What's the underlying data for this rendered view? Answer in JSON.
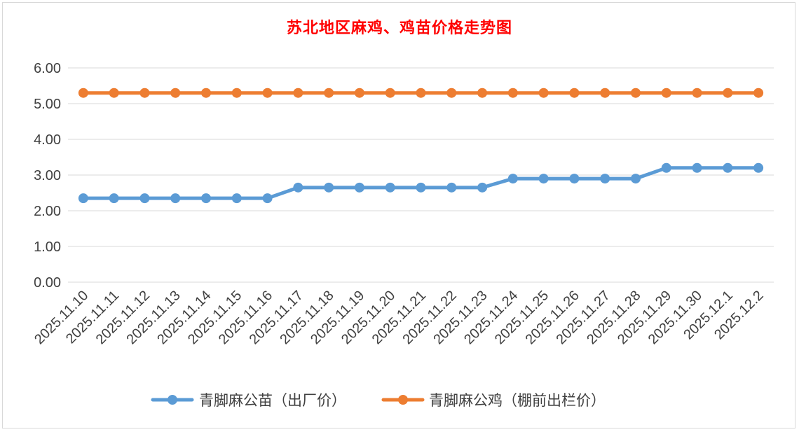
{
  "chart_data": {
    "type": "line",
    "title": "苏北地区麻鸡、鸡苗价格走势图",
    "categories": [
      "2025.11.10",
      "2025.11.11",
      "2025.11.12",
      "2025.11.13",
      "2025.11.14",
      "2025.11.15",
      "2025.11.16",
      "2025.11.17",
      "2025.11.18",
      "2025.11.19",
      "2025.11.20",
      "2025.11.21",
      "2025.11.22",
      "2025.11.23",
      "2025.11.24",
      "2025.11.25",
      "2025.11.26",
      "2025.11.27",
      "2025.11.28",
      "2025.11.29",
      "2025.11.30",
      "2025.12.1",
      "2025.12.2"
    ],
    "series": [
      {
        "name": "青脚麻公苗（出厂价）",
        "color": "#5b9bd5",
        "values": [
          2.35,
          2.35,
          2.35,
          2.35,
          2.35,
          2.35,
          2.35,
          2.65,
          2.65,
          2.65,
          2.65,
          2.65,
          2.65,
          2.65,
          2.9,
          2.9,
          2.9,
          2.9,
          2.9,
          3.2,
          3.2,
          3.2,
          3.2
        ]
      },
      {
        "name": "青脚麻公鸡（棚前出栏价）",
        "color": "#ed7d31",
        "values": [
          5.3,
          5.3,
          5.3,
          5.3,
          5.3,
          5.3,
          5.3,
          5.3,
          5.3,
          5.3,
          5.3,
          5.3,
          5.3,
          5.3,
          5.3,
          5.3,
          5.3,
          5.3,
          5.3,
          5.3,
          5.3,
          5.3,
          5.3
        ]
      }
    ],
    "yticks": [
      "0.00",
      "1.00",
      "2.00",
      "3.00",
      "4.00",
      "5.00",
      "6.00"
    ],
    "ylim": [
      0,
      6
    ],
    "grid": true,
    "legend": "bottom",
    "title_color": "#ff0000"
  }
}
